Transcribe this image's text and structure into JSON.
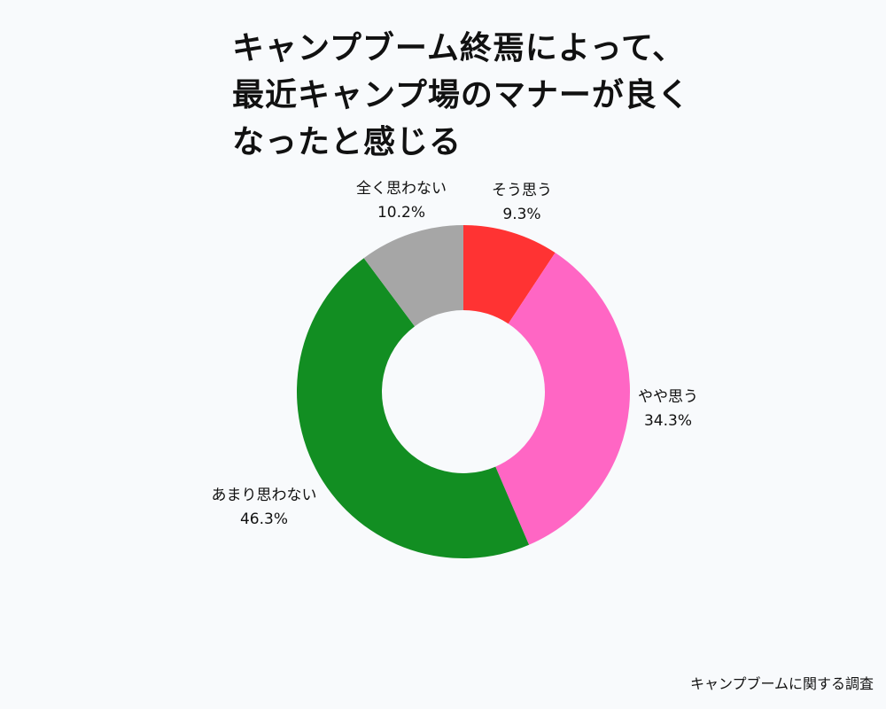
{
  "chart_data": {
    "type": "pie",
    "variant": "donut",
    "title_lines": [
      "キャンプブーム終焉によって、",
      "最近キャンプ場のマナーが良く",
      "なったと感じる"
    ],
    "slices": [
      {
        "label": "そう思う",
        "value": 9.3,
        "display": "9.3%",
        "color": "#ff3333"
      },
      {
        "label": "やや思う",
        "value": 34.3,
        "display": "34.3%",
        "color": "#ff66c4"
      },
      {
        "label": "あまり思わない",
        "value": 46.3,
        "display": "46.3%",
        "color": "#128e22"
      },
      {
        "label": "全く思わない",
        "value": 10.2,
        "display": "10.2%",
        "color": "#a6a6a6"
      }
    ],
    "start_angle": "top",
    "direction": "clockwise",
    "legend": "none"
  },
  "source": "キャンプブームに関する調査"
}
